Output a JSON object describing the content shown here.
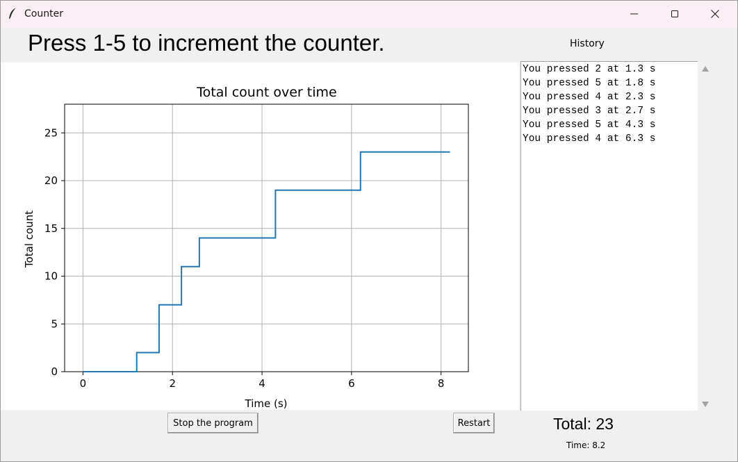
{
  "window": {
    "title": "Counter",
    "icon": "feather-icon",
    "controls": [
      "minimize-icon",
      "maximize-icon",
      "close-icon"
    ]
  },
  "headline": "Press 1-5 to increment the counter.",
  "history": {
    "label": "History",
    "lines": [
      "You pressed 2 at 1.3 s",
      "You pressed 5 at 1.8 s",
      "You pressed 4 at 2.3 s",
      "You pressed 3 at 2.7 s",
      "You pressed 5 at 4.3 s",
      "You pressed 4 at 6.3 s"
    ]
  },
  "buttons": {
    "stop": "Stop the program",
    "restart": "Restart"
  },
  "total_text": "Total: 23",
  "time_text": "Time: 8.2",
  "colors": {
    "line": "#1f77b4",
    "grid": "#b0b0b0"
  },
  "chart_data": {
    "type": "line",
    "step": "post",
    "title": "Total count over time",
    "xlabel": "Time (s)",
    "ylabel": "Total count",
    "xlim": [
      -0.41,
      8.61
    ],
    "ylim": [
      0,
      28
    ],
    "xticks": [
      0,
      2,
      4,
      6,
      8
    ],
    "yticks": [
      0,
      5,
      10,
      15,
      20,
      25
    ],
    "grid": true,
    "x": [
      0,
      1.2,
      1.7,
      2.2,
      2.6,
      4.3,
      6.2,
      8.2
    ],
    "y": [
      0,
      2,
      7,
      11,
      14,
      19,
      23,
      23
    ]
  }
}
